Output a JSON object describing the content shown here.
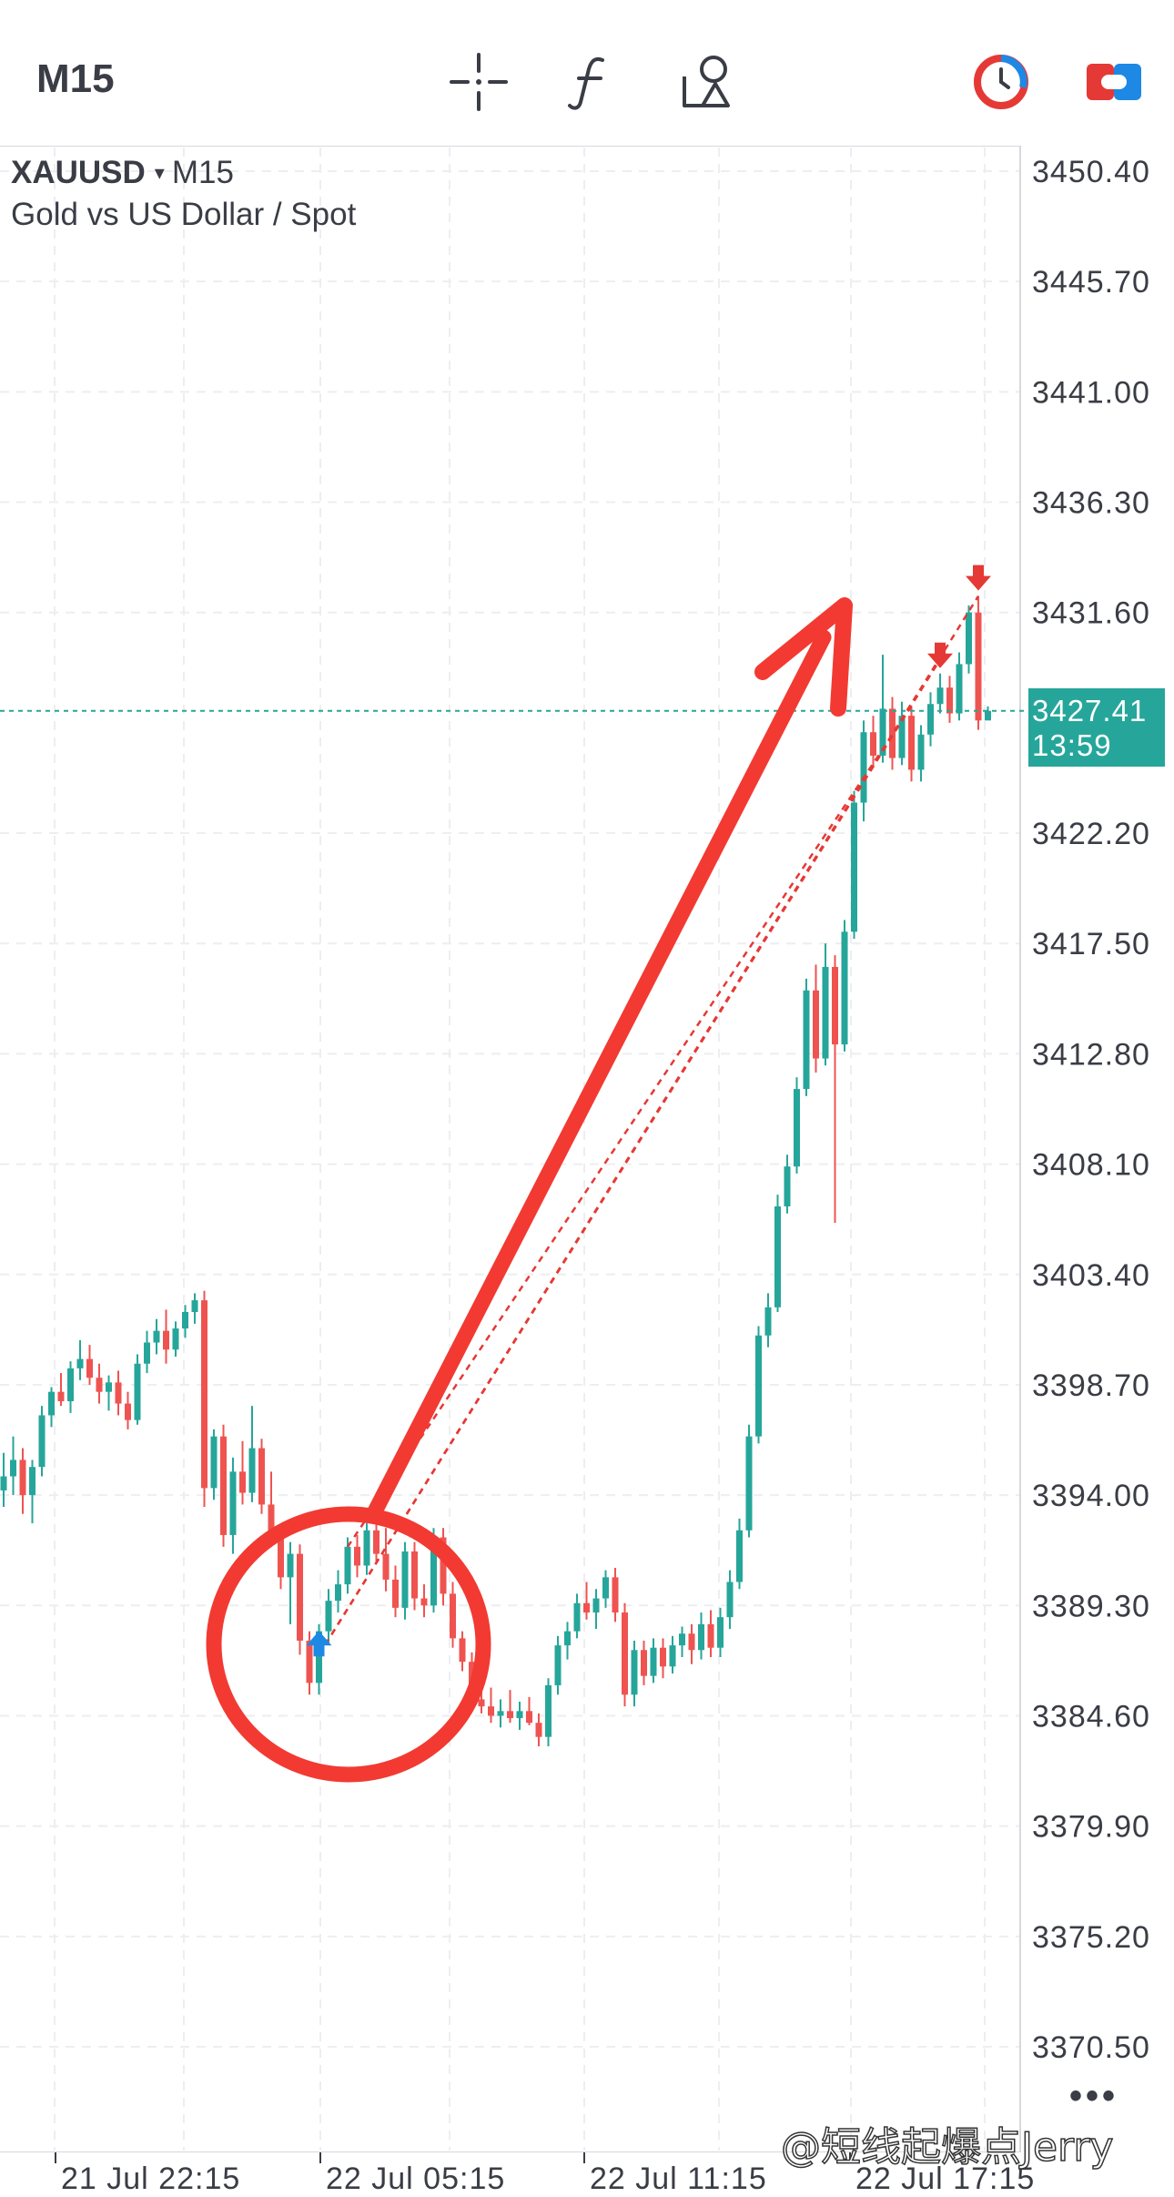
{
  "toolbar": {
    "timeframe": "M15",
    "icons": [
      "crosshair-icon",
      "indicators-icon",
      "drawing-tools-icon",
      "timer-icon",
      "toggle-icon"
    ]
  },
  "instrument": {
    "symbol": "XAUUSD",
    "dropdown_caret": "▾",
    "timeframe": "M15",
    "description": "Gold vs US Dollar / Spot"
  },
  "current_price": {
    "price": "3427.41",
    "countdown": "13:59"
  },
  "more_label": "•••",
  "watermark": "@短线起爆点Jerry",
  "colors": {
    "up": "#26a69a",
    "down": "#ef5350",
    "annotation": "#f23a32",
    "buy_marker": "#1e88e5",
    "sell_marker": "#e53935",
    "price_line": "#26a69a"
  },
  "chart_data": {
    "type": "candlestick",
    "y_ticks": [
      "3450.40",
      "3445.70",
      "3441.00",
      "3436.30",
      "3431.60",
      "3422.20",
      "3417.50",
      "3412.80",
      "3408.10",
      "3403.40",
      "3398.70",
      "3394.00",
      "3389.30",
      "3384.60",
      "3379.90",
      "3375.20",
      "3370.50"
    ],
    "x_ticks": [
      "21 Jul 22:15",
      "22 Jul 05:15",
      "22 Jul 11:15",
      "22 Jul 17:15"
    ],
    "ylim": [
      3368.0,
      3452.0
    ],
    "last_price": 3427.41,
    "candles": [
      [
        3394.2,
        3395.8,
        3393.5,
        3394.8
      ],
      [
        3394.8,
        3396.5,
        3394.0,
        3395.5
      ],
      [
        3395.5,
        3396.0,
        3393.2,
        3394.0
      ],
      [
        3394.0,
        3395.5,
        3392.8,
        3395.2
      ],
      [
        3395.2,
        3397.8,
        3394.8,
        3397.4
      ],
      [
        3397.4,
        3398.6,
        3396.9,
        3398.4
      ],
      [
        3398.4,
        3399.2,
        3397.8,
        3398.0
      ],
      [
        3398.0,
        3399.7,
        3397.5,
        3399.4
      ],
      [
        3399.4,
        3400.6,
        3398.9,
        3399.8
      ],
      [
        3399.8,
        3400.4,
        3398.7,
        3399.0
      ],
      [
        3399.0,
        3399.6,
        3397.9,
        3398.4
      ],
      [
        3398.4,
        3399.1,
        3397.6,
        3398.8
      ],
      [
        3398.8,
        3399.3,
        3397.4,
        3397.9
      ],
      [
        3397.9,
        3398.4,
        3396.8,
        3397.2
      ],
      [
        3397.2,
        3400.0,
        3397.0,
        3399.6
      ],
      [
        3399.6,
        3401.0,
        3399.2,
        3400.5
      ],
      [
        3400.5,
        3401.5,
        3400.0,
        3401.0
      ],
      [
        3401.0,
        3401.9,
        3399.6,
        3400.2
      ],
      [
        3400.2,
        3401.4,
        3399.9,
        3401.1
      ],
      [
        3401.1,
        3402.1,
        3400.7,
        3401.8
      ],
      [
        3401.8,
        3402.6,
        3401.3,
        3402.3
      ],
      [
        3402.3,
        3402.7,
        3393.5,
        3394.3
      ],
      [
        3394.3,
        3396.8,
        3393.8,
        3396.5
      ],
      [
        3396.5,
        3397.0,
        3391.8,
        3392.3
      ],
      [
        3392.3,
        3395.6,
        3391.5,
        3395.0
      ],
      [
        3395.0,
        3396.3,
        3393.6,
        3394.1
      ],
      [
        3394.1,
        3397.8,
        3393.7,
        3396.0
      ],
      [
        3396.0,
        3396.4,
        3393.2,
        3393.6
      ],
      [
        3393.6,
        3395.0,
        3391.8,
        3392.2
      ],
      [
        3392.2,
        3392.6,
        3390.0,
        3390.5
      ],
      [
        3390.5,
        3392.0,
        3388.5,
        3391.5
      ],
      [
        3391.5,
        3391.9,
        3387.2,
        3387.8
      ],
      [
        3387.8,
        3388.2,
        3385.5,
        3386.0
      ],
      [
        3386.0,
        3388.5,
        3385.5,
        3388.2
      ],
      [
        3388.2,
        3390.0,
        3387.7,
        3389.5
      ],
      [
        3389.5,
        3390.8,
        3389.0,
        3390.2
      ],
      [
        3390.2,
        3392.2,
        3389.8,
        3391.8
      ],
      [
        3391.8,
        3392.3,
        3390.5,
        3391.0
      ],
      [
        3391.0,
        3392.8,
        3390.6,
        3392.5
      ],
      [
        3392.5,
        3393.0,
        3391.1,
        3391.5
      ],
      [
        3391.5,
        3392.6,
        3389.9,
        3390.4
      ],
      [
        3390.4,
        3391.0,
        3388.8,
        3389.2
      ],
      [
        3389.2,
        3392.0,
        3388.7,
        3391.6
      ],
      [
        3391.6,
        3392.0,
        3389.1,
        3389.6
      ],
      [
        3389.6,
        3390.2,
        3388.8,
        3389.3
      ],
      [
        3389.3,
        3392.6,
        3389.0,
        3392.2
      ],
      [
        3392.2,
        3392.6,
        3389.3,
        3389.8
      ],
      [
        3389.8,
        3390.3,
        3387.5,
        3387.9
      ],
      [
        3387.9,
        3388.2,
        3386.5,
        3386.9
      ],
      [
        3386.9,
        3387.3,
        3384.8,
        3385.3
      ],
      [
        3385.3,
        3386.2,
        3384.7,
        3385.0
      ],
      [
        3385.0,
        3385.8,
        3384.3,
        3384.6
      ],
      [
        3384.6,
        3385.3,
        3384.1,
        3384.8
      ],
      [
        3384.8,
        3385.7,
        3384.3,
        3384.5
      ],
      [
        3384.5,
        3385.2,
        3384.0,
        3384.8
      ],
      [
        3384.8,
        3385.4,
        3384.2,
        3384.3
      ],
      [
        3384.3,
        3384.7,
        3383.3,
        3383.7
      ],
      [
        3383.7,
        3386.2,
        3383.3,
        3385.9
      ],
      [
        3385.9,
        3388.0,
        3385.5,
        3387.6
      ],
      [
        3387.6,
        3388.6,
        3387.0,
        3388.2
      ],
      [
        3388.2,
        3389.8,
        3387.9,
        3389.4
      ],
      [
        3389.4,
        3390.3,
        3388.7,
        3389.0
      ],
      [
        3389.0,
        3390.0,
        3388.3,
        3389.6
      ],
      [
        3389.6,
        3390.8,
        3389.2,
        3390.5
      ],
      [
        3390.5,
        3390.9,
        3388.6,
        3389.0
      ],
      [
        3389.0,
        3389.4,
        3385.0,
        3385.5
      ],
      [
        3385.5,
        3387.8,
        3385.0,
        3387.4
      ],
      [
        3387.4,
        3387.8,
        3385.9,
        3386.3
      ],
      [
        3386.3,
        3387.9,
        3386.0,
        3387.5
      ],
      [
        3387.5,
        3387.9,
        3386.2,
        3386.7
      ],
      [
        3386.7,
        3388.0,
        3386.4,
        3387.6
      ],
      [
        3387.6,
        3388.4,
        3387.1,
        3388.1
      ],
      [
        3388.1,
        3388.5,
        3386.8,
        3387.4
      ],
      [
        3387.4,
        3389.0,
        3387.0,
        3388.5
      ],
      [
        3388.5,
        3389.1,
        3387.1,
        3387.5
      ],
      [
        3387.5,
        3389.2,
        3387.1,
        3388.8
      ],
      [
        3388.8,
        3390.8,
        3388.3,
        3390.3
      ],
      [
        3390.3,
        3393.0,
        3390.0,
        3392.5
      ],
      [
        3392.5,
        3397.0,
        3392.2,
        3396.5
      ],
      [
        3396.5,
        3401.2,
        3396.2,
        3400.8
      ],
      [
        3400.8,
        3402.6,
        3400.3,
        3402.0
      ],
      [
        3402.0,
        3406.8,
        3401.8,
        3406.3
      ],
      [
        3406.3,
        3408.5,
        3406.0,
        3408.0
      ],
      [
        3408.0,
        3411.8,
        3407.7,
        3411.3
      ],
      [
        3411.3,
        3416.0,
        3411.0,
        3415.5
      ],
      [
        3415.5,
        3416.6,
        3412.0,
        3412.6
      ],
      [
        3412.6,
        3417.5,
        3412.3,
        3416.5
      ],
      [
        3416.5,
        3417.0,
        3405.6,
        3413.2
      ],
      [
        3413.2,
        3418.5,
        3412.9,
        3418.0
      ],
      [
        3418.0,
        3424.0,
        3417.7,
        3423.5
      ],
      [
        3423.5,
        3427.0,
        3422.7,
        3426.5
      ],
      [
        3426.5,
        3427.2,
        3425.0,
        3425.5
      ],
      [
        3425.5,
        3429.8,
        3425.2,
        3427.5
      ],
      [
        3427.5,
        3428.0,
        3424.9,
        3425.4
      ],
      [
        3425.4,
        3427.8,
        3425.1,
        3427.2
      ],
      [
        3427.2,
        3427.6,
        3424.4,
        3424.9
      ],
      [
        3424.9,
        3426.8,
        3424.4,
        3426.4
      ],
      [
        3426.4,
        3428.2,
        3425.9,
        3427.7
      ],
      [
        3427.7,
        3429.0,
        3427.3,
        3428.4
      ],
      [
        3428.4,
        3428.9,
        3426.9,
        3427.3
      ],
      [
        3427.3,
        3429.9,
        3427.0,
        3429.4
      ],
      [
        3429.4,
        3431.9,
        3429.0,
        3431.6
      ],
      [
        3431.6,
        3432.3,
        3426.6,
        3427.0
      ],
      [
        3427.0,
        3427.6,
        3427.1,
        3427.41
      ]
    ],
    "markers": [
      {
        "type": "buy",
        "at_index": 33
      },
      {
        "type": "sell",
        "at_index": 102
      },
      {
        "type": "sell",
        "at_index": 98
      }
    ],
    "trade_lines": [
      {
        "from_index": 33,
        "from_price": 3387.2,
        "to_index": 102,
        "to_price": 3432.3
      },
      {
        "from_index": 33,
        "from_price": 3387.2,
        "to_index": 98,
        "to_price": 3429.6
      },
      {
        "from_index": 36,
        "from_price": 3391.8,
        "to_index": 95,
        "to_price": 3427.6
      }
    ],
    "annotations": [
      {
        "type": "circle",
        "note": "red hand-drawn circle around the low"
      },
      {
        "type": "arrow",
        "note": "red hand-drawn arrow pointing up"
      }
    ]
  }
}
